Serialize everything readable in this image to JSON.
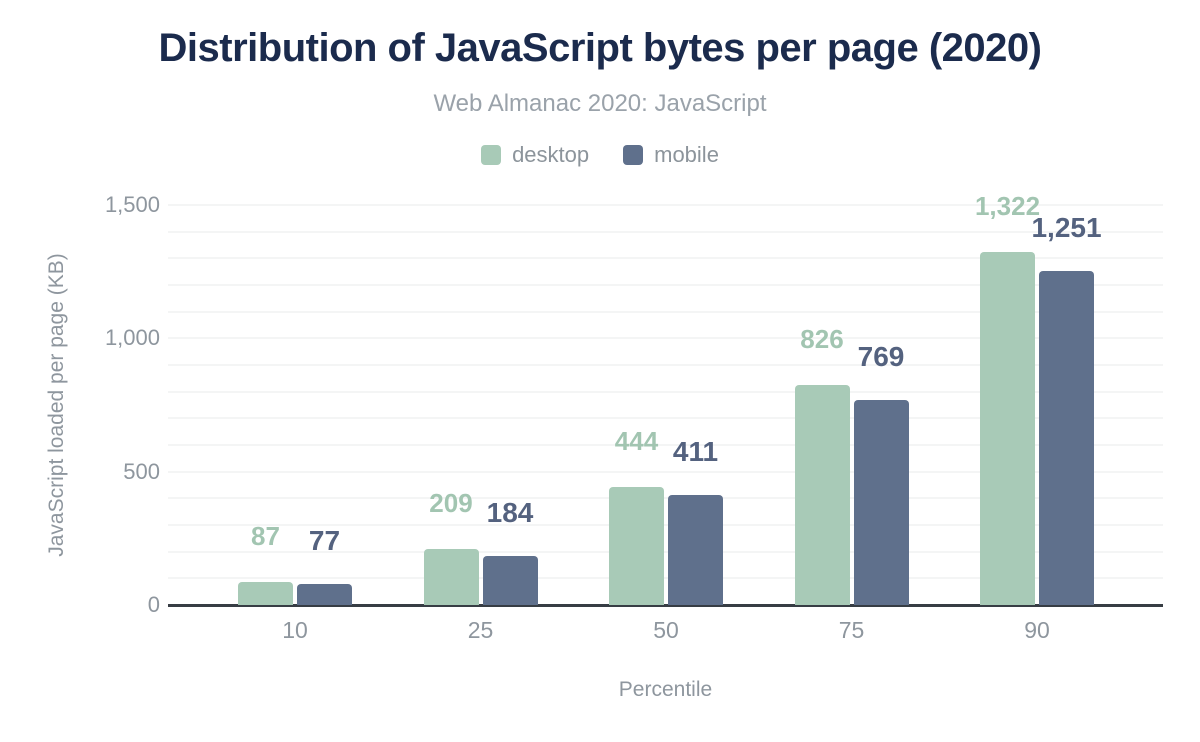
{
  "header": {
    "title": "Distribution of JavaScript bytes per page (2020)",
    "subtitle": "Web Almanac 2020: JavaScript"
  },
  "colors": {
    "title": "#1b2b4d",
    "subtitle": "#9aa2aa",
    "axis_text": "#8e969e",
    "gridline": "#f4f5f5",
    "axis_line": "#373d44",
    "background": "#ffffff",
    "desktop_bar": "#a8cab7",
    "desktop_label": "#a2c5b1",
    "mobile_bar": "#5f708c",
    "mobile_label": "#54627f"
  },
  "chart_data": {
    "type": "bar",
    "title": "Distribution of JavaScript bytes per page (2020)",
    "subtitle": "Web Almanac 2020: JavaScript",
    "categories": [
      "10",
      "25",
      "50",
      "75",
      "90"
    ],
    "series": [
      {
        "name": "desktop",
        "values": [
          87,
          209,
          444,
          826,
          1322
        ],
        "labels": [
          "87",
          "209",
          "444",
          "826",
          "1,322"
        ],
        "color": "#a8cab7",
        "label_color": "#a2c5b1"
      },
      {
        "name": "mobile",
        "values": [
          77,
          184,
          411,
          769,
          1251
        ],
        "labels": [
          "77",
          "184",
          "411",
          "769",
          "1,251"
        ],
        "color": "#5f708c",
        "label_color": "#54627f"
      }
    ],
    "xlabel": "Percentile",
    "ylabel": "JavaScript loaded per page (KB)",
    "ylim": [
      0,
      1500
    ],
    "yticks": [
      0,
      500,
      1000,
      1500
    ],
    "ytick_labels": [
      "0",
      "500",
      "1,000",
      "1,500"
    ],
    "minor_grid_step": 100,
    "grid": true,
    "legend_position": "top",
    "data_labels_shown": true
  }
}
